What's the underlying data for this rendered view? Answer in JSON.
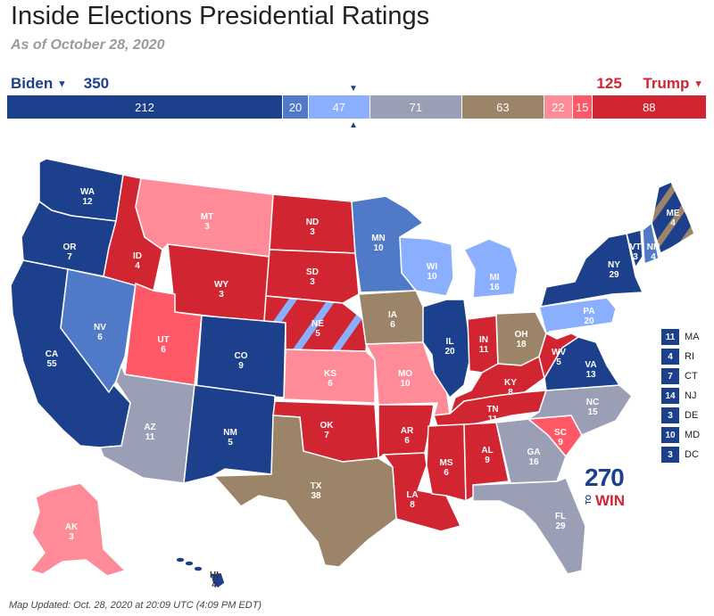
{
  "header": {
    "title": "Inside Elections Presidential Ratings",
    "subtitle": "As of October 28, 2020"
  },
  "candidates": {
    "left_name": "Biden",
    "left_total": "350",
    "right_total": "125",
    "right_name": "Trump"
  },
  "colors": {
    "safe_d": "#1c408c",
    "likely_d": "#5079c8",
    "lean_d": "#8aafff",
    "tossup": "#9b9fb6",
    "tilt": "#9b8467",
    "lean_r": "#ff8b98",
    "likely_r": "#ff5867",
    "safe_r": "#d22532"
  },
  "bar_segments": [
    {
      "label": "212",
      "value": 212,
      "color": "#1c408c"
    },
    {
      "label": "20",
      "value": 20,
      "color": "#5079c8"
    },
    {
      "label": "47",
      "value": 47,
      "color": "#8aafff"
    },
    {
      "label": "71",
      "value": 71,
      "color": "#9b9fb6"
    },
    {
      "label": "63",
      "value": 63,
      "color": "#9b8467"
    },
    {
      "label": "22",
      "value": 22,
      "color": "#ff8b98"
    },
    {
      "label": "15",
      "value": 15,
      "color": "#ff5867"
    },
    {
      "label": "88",
      "value": 88,
      "color": "#d22532"
    }
  ],
  "states": [
    {
      "abbr": "WA",
      "ev": "12",
      "rating": "safe_d"
    },
    {
      "abbr": "OR",
      "ev": "7",
      "rating": "safe_d"
    },
    {
      "abbr": "CA",
      "ev": "55",
      "rating": "safe_d"
    },
    {
      "abbr": "NV",
      "ev": "6",
      "rating": "likely_d"
    },
    {
      "abbr": "ID",
      "ev": "4",
      "rating": "safe_r"
    },
    {
      "abbr": "MT",
      "ev": "3",
      "rating": "lean_r"
    },
    {
      "abbr": "WY",
      "ev": "3",
      "rating": "safe_r"
    },
    {
      "abbr": "UT",
      "ev": "6",
      "rating": "likely_r"
    },
    {
      "abbr": "AZ",
      "ev": "11",
      "rating": "tossup"
    },
    {
      "abbr": "CO",
      "ev": "9",
      "rating": "safe_d"
    },
    {
      "abbr": "NM",
      "ev": "5",
      "rating": "safe_d"
    },
    {
      "abbr": "ND",
      "ev": "3",
      "rating": "safe_r"
    },
    {
      "abbr": "SD",
      "ev": "3",
      "rating": "safe_r"
    },
    {
      "abbr": "NE",
      "ev": "5",
      "rating": "safe_r"
    },
    {
      "abbr": "KS",
      "ev": "6",
      "rating": "lean_r"
    },
    {
      "abbr": "OK",
      "ev": "7",
      "rating": "safe_r"
    },
    {
      "abbr": "TX",
      "ev": "38",
      "rating": "tilt"
    },
    {
      "abbr": "MN",
      "ev": "10",
      "rating": "likely_d"
    },
    {
      "abbr": "IA",
      "ev": "6",
      "rating": "tilt"
    },
    {
      "abbr": "MO",
      "ev": "10",
      "rating": "lean_r"
    },
    {
      "abbr": "AR",
      "ev": "6",
      "rating": "safe_r"
    },
    {
      "abbr": "LA",
      "ev": "8",
      "rating": "safe_r"
    },
    {
      "abbr": "WI",
      "ev": "10",
      "rating": "lean_d"
    },
    {
      "abbr": "IL",
      "ev": "20",
      "rating": "safe_d"
    },
    {
      "abbr": "MI",
      "ev": "16",
      "rating": "lean_d"
    },
    {
      "abbr": "IN",
      "ev": "11",
      "rating": "safe_r"
    },
    {
      "abbr": "OH",
      "ev": "18",
      "rating": "tilt"
    },
    {
      "abbr": "KY",
      "ev": "8",
      "rating": "safe_r"
    },
    {
      "abbr": "TN",
      "ev": "11",
      "rating": "safe_r"
    },
    {
      "abbr": "MS",
      "ev": "6",
      "rating": "safe_r"
    },
    {
      "abbr": "AL",
      "ev": "9",
      "rating": "safe_r"
    },
    {
      "abbr": "GA",
      "ev": "16",
      "rating": "tossup"
    },
    {
      "abbr": "FL",
      "ev": "29",
      "rating": "tossup"
    },
    {
      "abbr": "SC",
      "ev": "9",
      "rating": "likely_r"
    },
    {
      "abbr": "NC",
      "ev": "15",
      "rating": "tossup"
    },
    {
      "abbr": "VA",
      "ev": "13",
      "rating": "safe_d"
    },
    {
      "abbr": "WV",
      "ev": "5",
      "rating": "safe_r"
    },
    {
      "abbr": "PA",
      "ev": "20",
      "rating": "lean_d"
    },
    {
      "abbr": "NY",
      "ev": "29",
      "rating": "safe_d"
    },
    {
      "abbr": "VT",
      "ev": "3",
      "rating": "safe_d"
    },
    {
      "abbr": "NH",
      "ev": "4",
      "rating": "likely_d"
    },
    {
      "abbr": "ME",
      "ev": "4",
      "rating": "safe_d"
    },
    {
      "abbr": "AK",
      "ev": "3",
      "rating": "lean_r"
    },
    {
      "abbr": "HI",
      "ev": "4",
      "rating": "safe_d"
    }
  ],
  "small_states": [
    {
      "ev": "11",
      "abbr": "MA"
    },
    {
      "ev": "4",
      "abbr": "RI"
    },
    {
      "ev": "7",
      "abbr": "CT"
    },
    {
      "ev": "14",
      "abbr": "NJ"
    },
    {
      "ev": "3",
      "abbr": "DE"
    },
    {
      "ev": "10",
      "abbr": "MD"
    },
    {
      "ev": "3",
      "abbr": "DC"
    }
  ],
  "logo": {
    "number": "270",
    "to": "TO",
    "win": "WIN"
  },
  "footer": {
    "updated": "Map Updated: Oct. 28, 2020 at 20:09 UTC (4:09 PM EDT)"
  }
}
